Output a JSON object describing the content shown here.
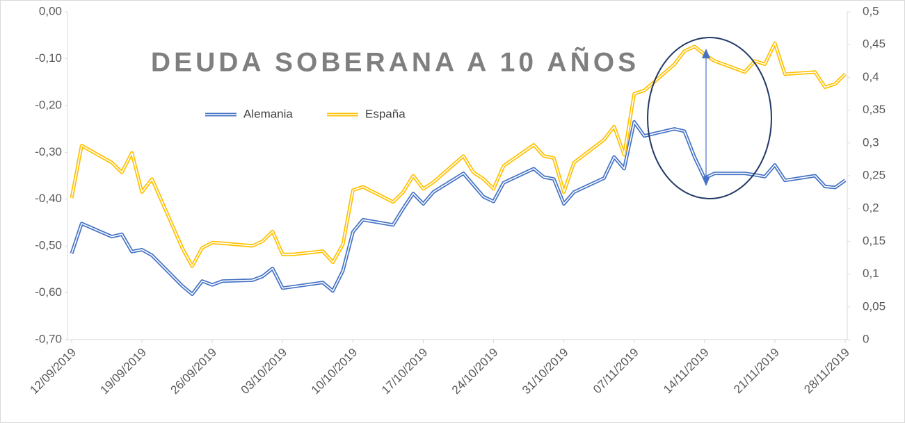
{
  "chart_data": {
    "type": "line",
    "title": "DEUDA SOBERANA A 10 AÑOS",
    "x": [
      "12/09/2019",
      "13/09/2019",
      "16/09/2019",
      "17/09/2019",
      "18/09/2019",
      "19/09/2019",
      "20/09/2019",
      "23/09/2019",
      "24/09/2019",
      "25/09/2019",
      "26/09/2019",
      "27/09/2019",
      "30/09/2019",
      "01/10/2019",
      "02/10/2019",
      "03/10/2019",
      "04/10/2019",
      "07/10/2019",
      "08/10/2019",
      "09/10/2019",
      "10/10/2019",
      "11/10/2019",
      "14/10/2019",
      "15/10/2019",
      "16/10/2019",
      "17/10/2019",
      "18/10/2019",
      "21/10/2019",
      "22/10/2019",
      "23/10/2019",
      "24/10/2019",
      "25/10/2019",
      "28/10/2019",
      "29/10/2019",
      "30/10/2019",
      "31/10/2019",
      "01/11/2019",
      "04/11/2019",
      "05/11/2019",
      "06/11/2019",
      "07/11/2019",
      "08/11/2019",
      "11/11/2019",
      "12/11/2019",
      "13/11/2019",
      "14/11/2019",
      "15/11/2019",
      "18/11/2019",
      "19/11/2019",
      "20/11/2019",
      "21/11/2019",
      "22/11/2019",
      "25/11/2019",
      "26/11/2019",
      "27/11/2019",
      "28/11/2019"
    ],
    "series": [
      {
        "name": "Alemania",
        "color": "#4472c4",
        "axis": "y",
        "values": [
          -0.516,
          -0.452,
          -0.48,
          -0.475,
          -0.512,
          -0.508,
          -0.52,
          -0.585,
          -0.603,
          -0.575,
          -0.583,
          -0.575,
          -0.573,
          -0.565,
          -0.548,
          -0.59,
          -0.587,
          -0.578,
          -0.596,
          -0.553,
          -0.47,
          -0.444,
          -0.455,
          -0.42,
          -0.388,
          -0.41,
          -0.385,
          -0.345,
          -0.37,
          -0.395,
          -0.405,
          -0.365,
          -0.335,
          -0.353,
          -0.357,
          -0.41,
          -0.385,
          -0.355,
          -0.31,
          -0.335,
          -0.235,
          -0.265,
          -0.25,
          -0.255,
          -0.31,
          -0.355,
          -0.345,
          -0.345,
          -0.348,
          -0.352,
          -0.327,
          -0.36,
          -0.35,
          -0.373,
          -0.375,
          -0.36
        ]
      },
      {
        "name": "España",
        "color": "#ffc000",
        "axis": "y2",
        "values": [
          0.216,
          0.296,
          0.27,
          0.255,
          0.285,
          0.225,
          0.245,
          0.14,
          0.112,
          0.14,
          0.148,
          0.147,
          0.143,
          0.15,
          0.165,
          0.13,
          0.13,
          0.135,
          0.118,
          0.145,
          0.228,
          0.233,
          0.21,
          0.225,
          0.25,
          0.23,
          0.24,
          0.28,
          0.255,
          0.245,
          0.23,
          0.265,
          0.297,
          0.28,
          0.277,
          0.225,
          0.27,
          0.305,
          0.325,
          0.282,
          0.375,
          0.38,
          0.42,
          0.44,
          0.447,
          0.435,
          0.425,
          0.408,
          0.425,
          0.42,
          0.452,
          0.405,
          0.408,
          0.385,
          0.39,
          0.405
        ]
      }
    ],
    "xlim": [
      "12/09/2019",
      "28/11/2019"
    ],
    "xticks": [
      "12/09/2019",
      "19/09/2019",
      "26/09/2019",
      "03/10/2019",
      "10/10/2019",
      "17/10/2019",
      "24/10/2019",
      "31/10/2019",
      "07/11/2019",
      "14/11/2019",
      "21/11/2019",
      "28/11/2019"
    ],
    "ylim": [
      -0.7,
      0
    ],
    "yticks": [
      {
        "value": -0.7,
        "label": "-0,70"
      },
      {
        "value": -0.6,
        "label": "-0,60"
      },
      {
        "value": -0.5,
        "label": "-0,50"
      },
      {
        "value": -0.4,
        "label": "-0,40"
      },
      {
        "value": -0.3,
        "label": "-0,30"
      },
      {
        "value": -0.2,
        "label": "-0,20"
      },
      {
        "value": -0.1,
        "label": "-0,10"
      },
      {
        "value": 0,
        "label": "0,00"
      }
    ],
    "y2lim": [
      0,
      0.5
    ],
    "y2ticks": [
      0,
      {
        "value": 0.05,
        "label": "0,05"
      },
      {
        "value": 0.1,
        "label": "0,1"
      },
      {
        "value": 0.15,
        "label": "0,15"
      },
      {
        "value": 0.2,
        "label": "0,2"
      },
      {
        "value": 0.25,
        "label": "0,25"
      },
      {
        "value": 0.3,
        "label": "0,3"
      },
      {
        "value": 0.35,
        "label": "0,35"
      },
      {
        "value": 0.4,
        "label": "0,4"
      },
      {
        "value": 0.45,
        "label": "0,45"
      },
      {
        "value": 0.5,
        "label": "0,5"
      }
    ],
    "grid": false,
    "legend": "top-left"
  }
}
